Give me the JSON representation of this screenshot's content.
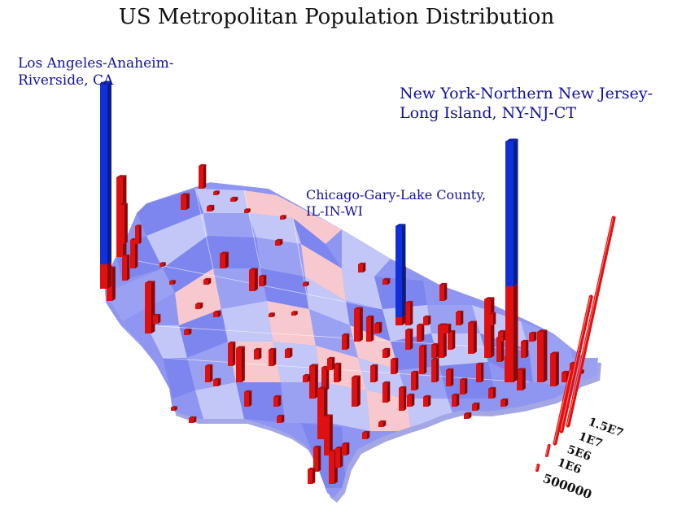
{
  "title": "US Metropolitan Population Distribution",
  "labels": {
    "la": [
      "Los Angeles-Anaheim-",
      "Riverside, CA"
    ],
    "ny": [
      "New York-Northern New Jersey-",
      "Long Island, NY-NJ-CT"
    ],
    "chi": [
      "Chicago-Gary-Lake County,",
      "IL-IN-WI"
    ]
  },
  "legend": {
    "ticks": [
      "1.5E7",
      "1E7",
      "5E6",
      "1E6",
      "500000"
    ],
    "values": [
      15000000,
      10000000,
      5000000,
      1000000,
      500000
    ]
  },
  "colors": {
    "bar": "#e01010",
    "highlight": "#1030dd",
    "state_blue": [
      "#7d86ee",
      "#9aa1f3",
      "#c2c7f8"
    ],
    "state_pink": "#f7c9cf"
  },
  "highlighted_metros": [
    {
      "name": "New York-Northern New Jersey-Long Island, NY-NJ-CT",
      "population": 18800000
    },
    {
      "name": "Los Angeles-Anaheim-Riverside, CA",
      "population": 12800000
    },
    {
      "name": "Chicago-Gary-Lake County, IL-IN-WI",
      "population": 9500000
    }
  ]
}
